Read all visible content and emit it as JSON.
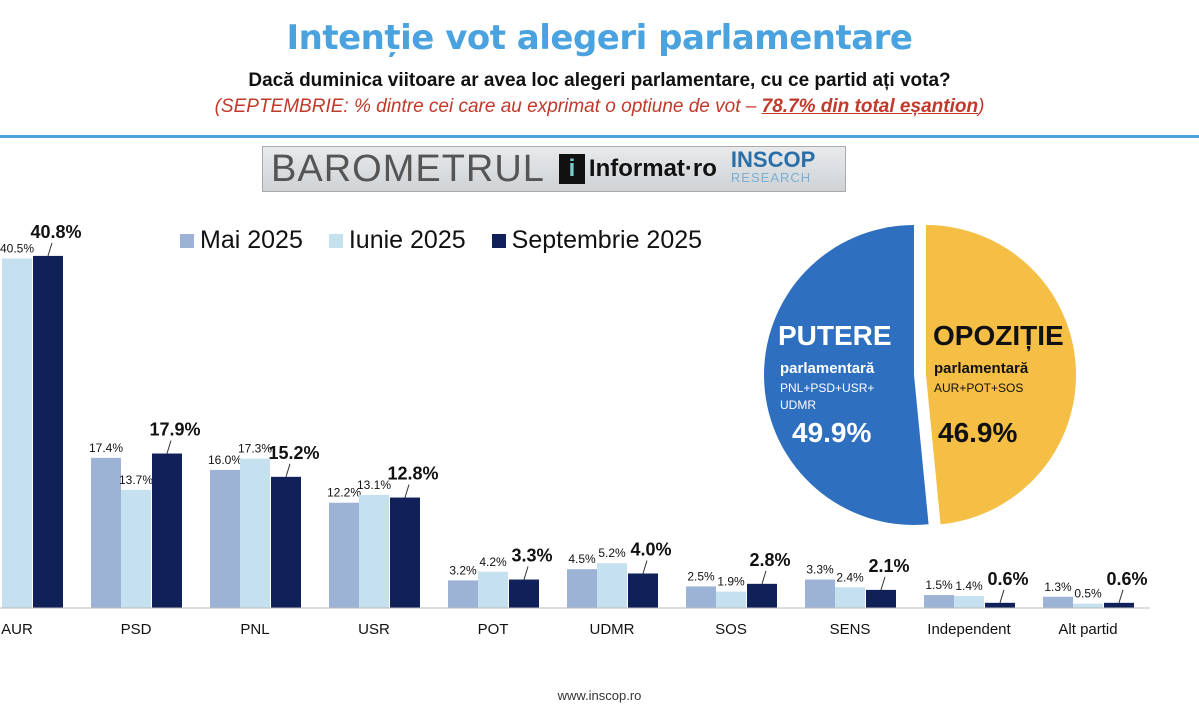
{
  "header": {
    "title": "Intenție vot alegeri parlamentare",
    "question": "Dacă duminica viitoare ar avea loc alegeri parlamentare, cu ce partid ați vota?",
    "note_prefix": "(SEPTEMBRIE: % dintre cei care au exprimat o optiune de vot – ",
    "note_emph": "78.7% din total eșantion",
    "note_suffix": ")"
  },
  "logo": {
    "barometrul": "BAROMETRUL",
    "informat": "Informat·ro",
    "inscop": "INSCOP",
    "research": "RESEARCH"
  },
  "footer": "www.inscop.ro",
  "chart_data": [
    {
      "type": "bar",
      "title": "",
      "xlabel": "",
      "ylabel": "",
      "ylim": [
        0,
        42
      ],
      "categories": [
        "AUR",
        "PSD",
        "PNL",
        "USR",
        "POT",
        "UDMR",
        "SOS",
        "SENS",
        "Independent",
        "Alt partid"
      ],
      "series": [
        {
          "name": "Mai 2025",
          "color": "#9db3d6",
          "values": [
            null,
            17.4,
            16.0,
            12.2,
            3.2,
            4.5,
            2.5,
            3.3,
            1.5,
            1.3
          ]
        },
        {
          "name": "Iunie 2025",
          "color": "#c5e0ee",
          "values": [
            40.5,
            13.7,
            17.3,
            13.1,
            4.2,
            5.2,
            1.9,
            2.4,
            1.4,
            0.5
          ]
        },
        {
          "name": "Septembrie 2025",
          "color": "#10215a",
          "values": [
            40.8,
            17.9,
            15.2,
            12.8,
            3.3,
            4.0,
            2.8,
            2.1,
            0.6,
            0.6
          ]
        }
      ],
      "legend": "top"
    },
    {
      "type": "pie",
      "slices": [
        {
          "label": "PUTERE",
          "sub": "parlamentară",
          "parties": "PNL+PSD+USR+ UDMR",
          "value": 49.9,
          "color": "#2f6fc0"
        },
        {
          "label": "OPOZIȚIE",
          "sub": "parlamentară",
          "parties": "AUR+POT+SOS",
          "value": 46.9,
          "color": "#f5be45"
        }
      ]
    }
  ]
}
